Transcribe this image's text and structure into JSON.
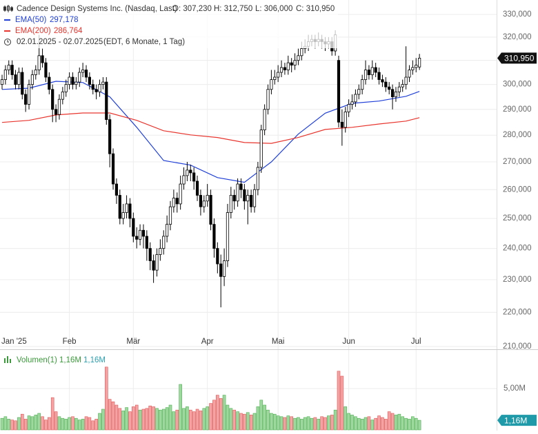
{
  "chart_data": [
    {
      "type": "candlestick",
      "title": "Cadence Design Systems Inc. (Nasdaq, Last)",
      "ohlc_labels": [
        "O: 307,230",
        "H: 312,750",
        "L: 306,000",
        "C: 310,950"
      ],
      "date_range": "02.01.2025 - 02.07.2025",
      "period": "(EDT, 6 Monate, 1 Tag)",
      "last_value_label": "310,950",
      "up_color": "#ffffff",
      "down_color": "#000000",
      "open": [
        300000,
        302000,
        306000,
        308000,
        304000,
        300000,
        305000,
        296000,
        292000,
        300000,
        304000,
        306000,
        312000,
        309000,
        303000,
        298000,
        290000,
        288000,
        294000,
        297000,
        300000,
        303000,
        300000,
        301000,
        305000,
        306000,
        303000,
        300000,
        298000,
        297000,
        300000,
        301000,
        286000,
        273000,
        262000,
        258000,
        250000,
        252000,
        255000,
        250000,
        244000,
        243000,
        246000,
        244000,
        240000,
        236000,
        233000,
        238000,
        240000,
        244000,
        248000,
        254000,
        257000,
        255000,
        262000,
        265000,
        267000,
        266000,
        263000,
        258000,
        254000,
        256000,
        258000,
        248000,
        240000,
        235000,
        231000,
        236000,
        252000,
        258000,
        256000,
        262000,
        260000,
        256000,
        258000,
        254000,
        260000,
        268000,
        282000,
        290000,
        298000,
        302000,
        303000,
        305000,
        307000,
        306000,
        309000,
        308000,
        310000,
        312000,
        315000,
        316000,
        318000,
        319000,
        318000,
        319000,
        318000,
        317000,
        318000,
        314000,
        310000,
        285000,
        283000,
        289000,
        292000,
        293000,
        296000,
        298000,
        302000,
        306000,
        304000,
        307000,
        305000,
        302000,
        301000,
        299000,
        298000,
        295000,
        297000,
        299000,
        300000,
        303000,
        306000,
        307000,
        307230
      ],
      "high": [
        304000,
        308000,
        310000,
        310000,
        306000,
        307000,
        307000,
        298000,
        302000,
        306000,
        308000,
        321000,
        315000,
        311000,
        305000,
        300000,
        292000,
        296000,
        299000,
        302000,
        305000,
        305000,
        303000,
        307000,
        309000,
        308000,
        305000,
        302000,
        300000,
        302000,
        303000,
        303000,
        288000,
        275000,
        264000,
        260000,
        255000,
        258000,
        257000,
        252000,
        247000,
        248000,
        248000,
        246000,
        242000,
        238000,
        240000,
        243000,
        246000,
        251000,
        256000,
        260000,
        259000,
        265000,
        268000,
        270000,
        269000,
        268000,
        265000,
        260000,
        258000,
        262000,
        260000,
        250000,
        242000,
        238000,
        240000,
        255000,
        261000,
        260000,
        264000,
        264000,
        262000,
        260000,
        260000,
        262000,
        270000,
        284000,
        292000,
        300000,
        306000,
        306000,
        308000,
        310000,
        309000,
        312000,
        311000,
        313000,
        315000,
        318000,
        319000,
        321000,
        321000,
        321000,
        322000,
        321000,
        320000,
        320000,
        320000,
        323000,
        312000,
        290000,
        291000,
        294000,
        296000,
        298000,
        300000,
        304000,
        310000,
        308000,
        310000,
        309000,
        307000,
        304000,
        303000,
        301000,
        300000,
        299000,
        301000,
        302000,
        316000,
        308000,
        310000,
        311000,
        312750
      ],
      "low": [
        298000,
        300000,
        304000,
        302000,
        298000,
        298000,
        294000,
        289000,
        290000,
        298000,
        302000,
        304000,
        307000,
        301000,
        296000,
        285000,
        285000,
        286000,
        292000,
        295000,
        298000,
        298000,
        298000,
        299000,
        303000,
        301000,
        298000,
        296000,
        294000,
        295000,
        298000,
        284000,
        268000,
        260000,
        255000,
        248000,
        248000,
        250000,
        247000,
        242000,
        240000,
        241000,
        240000,
        236000,
        233000,
        229000,
        231000,
        236000,
        238000,
        242000,
        246000,
        252000,
        252000,
        253000,
        260000,
        263000,
        263000,
        260000,
        256000,
        251000,
        252000,
        254000,
        246000,
        237000,
        232000,
        221500,
        228000,
        234000,
        250000,
        253000,
        254000,
        257000,
        253000,
        248000,
        252000,
        252000,
        258000,
        266000,
        280000,
        288000,
        296000,
        300000,
        301000,
        303000,
        304000,
        304000,
        305000,
        306000,
        308000,
        310000,
        313000,
        314000,
        316000,
        315000,
        316000,
        315000,
        314000,
        315000,
        312000,
        312000,
        283000,
        276000,
        281000,
        287000,
        290000,
        291000,
        294000,
        296000,
        300000,
        302000,
        302000,
        303000,
        300000,
        299000,
        297000,
        296000,
        290000,
        293000,
        295000,
        297000,
        298000,
        301000,
        304000,
        305000,
        306000
      ],
      "close": [
        302000,
        306000,
        308000,
        304000,
        300000,
        305000,
        296000,
        292000,
        300000,
        304000,
        306000,
        312000,
        309000,
        303000,
        298000,
        290000,
        288000,
        294000,
        297000,
        300000,
        303000,
        300000,
        301000,
        305000,
        306000,
        303000,
        300000,
        298000,
        297000,
        300000,
        301000,
        286000,
        273000,
        262000,
        258000,
        250000,
        252000,
        255000,
        250000,
        244000,
        243000,
        246000,
        244000,
        240000,
        236000,
        233000,
        238000,
        240000,
        244000,
        248000,
        254000,
        257000,
        255000,
        262000,
        265000,
        267000,
        266000,
        263000,
        258000,
        254000,
        256000,
        258000,
        248000,
        240000,
        235000,
        231000,
        236000,
        252000,
        258000,
        256000,
        262000,
        260000,
        256000,
        258000,
        254000,
        260000,
        268000,
        282000,
        290000,
        298000,
        302000,
        303000,
        305000,
        307000,
        306000,
        309000,
        308000,
        310000,
        312000,
        315000,
        316000,
        318000,
        319000,
        318000,
        319000,
        318000,
        317000,
        318000,
        314000,
        321000,
        285000,
        283000,
        289000,
        292000,
        293000,
        296000,
        298000,
        302000,
        306000,
        304000,
        307000,
        305000,
        302000,
        301000,
        299000,
        298000,
        295000,
        297000,
        299000,
        300000,
        303000,
        306000,
        307000,
        308000,
        310950
      ],
      "series": [
        {
          "name": "EMA(50)",
          "value_label": "297,178",
          "color": "#1f3fd8",
          "x": [
            0,
            8,
            16,
            24,
            32,
            40,
            48,
            56,
            64,
            72,
            80,
            88,
            96,
            104,
            112,
            120,
            124
          ],
          "values": [
            298000,
            298500,
            301300,
            300800,
            295000,
            283000,
            270500,
            268800,
            264300,
            262600,
            270000,
            280400,
            288500,
            292400,
            293300,
            295200,
            297178
          ]
        },
        {
          "name": "EMA(200)",
          "value_label": "286,764",
          "color": "#e8342c",
          "x": [
            0,
            8,
            16,
            24,
            32,
            40,
            48,
            56,
            64,
            72,
            80,
            88,
            96,
            104,
            112,
            120,
            124
          ],
          "values": [
            284900,
            285700,
            287800,
            288600,
            288600,
            285700,
            281700,
            280100,
            279100,
            277200,
            276900,
            279100,
            282200,
            283000,
            284300,
            285400,
            286764
          ]
        }
      ],
      "xticks": [
        {
          "value": 0,
          "label": "Jan '25"
        },
        {
          "value": 20,
          "label": "Feb"
        },
        {
          "value": 39,
          "label": "Mär"
        },
        {
          "value": 61,
          "label": "Apr"
        },
        {
          "value": 82,
          "label": "Mai"
        },
        {
          "value": 103,
          "label": "Jun"
        },
        {
          "value": 123,
          "label": "Jul"
        }
      ],
      "ylim": [
        210000,
        330000
      ],
      "yticks": [
        {
          "value": 210000,
          "label": "210,000"
        },
        {
          "value": 220000,
          "label": "220,000"
        },
        {
          "value": 230000,
          "label": "230,000"
        },
        {
          "value": 240000,
          "label": "240,000"
        },
        {
          "value": 250000,
          "label": "250,000"
        },
        {
          "value": 260000,
          "label": "260,000"
        },
        {
          "value": 270000,
          "label": "270,000"
        },
        {
          "value": 280000,
          "label": "280,000"
        },
        {
          "value": 290000,
          "label": "290,000"
        },
        {
          "value": 300000,
          "label": "300,000"
        },
        {
          "value": 310000,
          "label": "310,000"
        },
        {
          "value": 320000,
          "label": "320,000"
        },
        {
          "value": 330000,
          "label": "330,000"
        }
      ],
      "log_scale": true,
      "grid": true
    },
    {
      "type": "bar",
      "name": "Volumen(1)",
      "legend_labels": [
        "1,16M",
        "1,16M"
      ],
      "last_value_label": "1,16M",
      "up_color": "#9fd89f",
      "down_color": "#f3a3a3",
      "values": [
        1.4,
        1.6,
        1.3,
        1.2,
        1.1,
        1.5,
        1.9,
        1.3,
        1.7,
        1.6,
        1.8,
        2.0,
        1.6,
        1.2,
        1.5,
        3.9,
        2.2,
        1.6,
        1.4,
        1.3,
        1.5,
        1.6,
        1.4,
        1.2,
        1.3,
        1.6,
        1.5,
        1.1,
        1.3,
        2.0,
        2.5,
        7.6,
        3.7,
        3.4,
        3.0,
        2.6,
        2.3,
        2.7,
        2.2,
        2.8,
        3.0,
        2.4,
        2.5,
        2.6,
        2.9,
        2.8,
        2.6,
        2.4,
        2.5,
        2.7,
        3.0,
        2.2,
        2.4,
        5.5,
        2.6,
        2.8,
        2.4,
        2.2,
        2.5,
        2.3,
        2.6,
        2.8,
        3.2,
        3.6,
        4.2,
        3.8,
        4.2,
        3.0,
        2.6,
        2.4,
        2.2,
        2.0,
        1.9,
        2.1,
        1.8,
        2.0,
        2.8,
        3.6,
        3.0,
        2.4,
        2.0,
        1.9,
        1.7,
        1.6,
        1.5,
        1.7,
        1.6,
        1.4,
        1.5,
        1.3,
        1.5,
        1.6,
        1.4,
        1.5,
        1.3,
        1.6,
        1.5,
        1.7,
        1.8,
        2.4,
        7.1,
        6.5,
        2.8,
        2.0,
        1.8,
        1.6,
        1.4,
        1.3,
        1.5,
        1.6,
        1.2,
        1.4,
        1.7,
        1.5,
        1.3,
        2.2,
        2.0,
        1.8,
        1.9,
        1.6,
        1.4,
        1.3,
        1.6,
        1.4,
        1.16
      ],
      "ylim": [
        0,
        9.5
      ],
      "yticks": [
        {
          "value": 5,
          "label": "5,00M"
        }
      ],
      "grid": true
    }
  ]
}
